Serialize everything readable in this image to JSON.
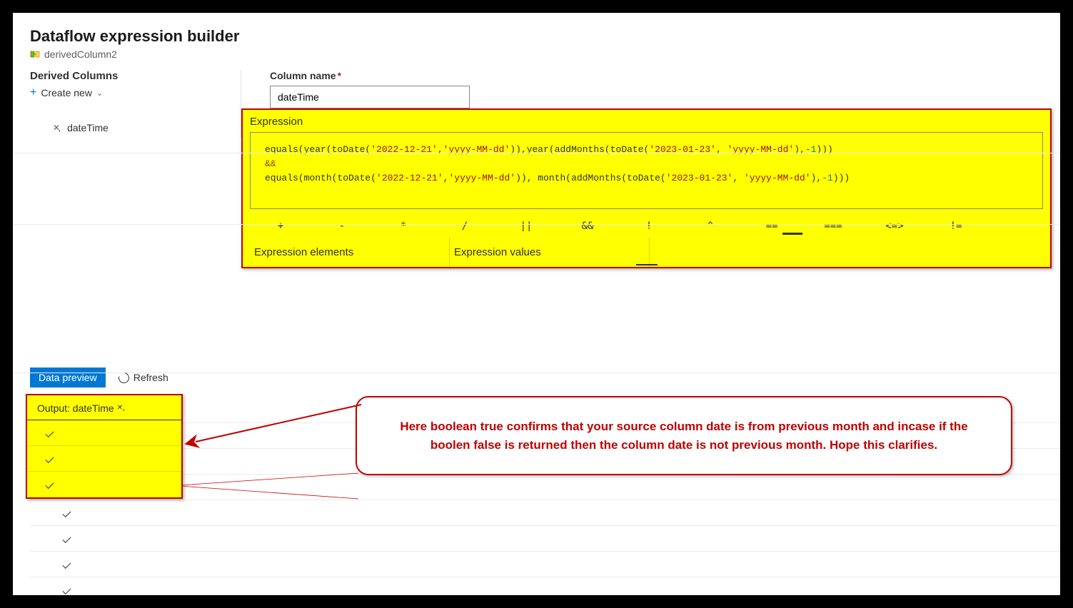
{
  "header": {
    "title": "Dataflow expression builder",
    "breadcrumb": "derivedColumn2"
  },
  "left": {
    "heading": "Derived Columns",
    "create_label": "Create new",
    "item_label": "dateTime"
  },
  "right": {
    "col_name_label": "Column name",
    "col_name_value": "dateTime",
    "expr_label": "Expression",
    "expr_tokens": [
      {
        "t": "fn",
        "v": "equals(year(toDate("
      },
      {
        "t": "str",
        "v": "'2022-12-21'"
      },
      {
        "t": "fn",
        "v": ","
      },
      {
        "t": "str",
        "v": "'yyyy-MM-dd'"
      },
      {
        "t": "fn",
        "v": ")),year(addMonths(toDate("
      },
      {
        "t": "str",
        "v": "'2023-01-23'"
      },
      {
        "t": "fn",
        "v": ", "
      },
      {
        "t": "str",
        "v": "'yyyy-MM-dd'"
      },
      {
        "t": "fn",
        "v": "),"
      },
      {
        "t": "num",
        "v": "-1"
      },
      {
        "t": "fn",
        "v": ")))"
      },
      {
        "t": "nl"
      },
      {
        "t": "op",
        "v": "&&"
      },
      {
        "t": "nl"
      },
      {
        "t": "fn",
        "v": "equals(month(toDate("
      },
      {
        "t": "str",
        "v": "'2022-12-21'"
      },
      {
        "t": "fn",
        "v": ","
      },
      {
        "t": "str",
        "v": "'yyyy-MM-dd'"
      },
      {
        "t": "fn",
        "v": ")), month(addMonths(toDate("
      },
      {
        "t": "str",
        "v": "'2023-01-23'"
      },
      {
        "t": "fn",
        "v": ", "
      },
      {
        "t": "str",
        "v": "'yyyy-MM-dd'"
      },
      {
        "t": "fn",
        "v": "),"
      },
      {
        "t": "num",
        "v": "-1"
      },
      {
        "t": "fn",
        "v": ")))"
      }
    ],
    "operators": [
      "+",
      "-",
      "*",
      "/",
      "||",
      "&&",
      "!",
      "^",
      "==",
      "===",
      "<=>",
      "!="
    ],
    "selected_op_index": 8,
    "tab_elements": "Expression elements",
    "tab_values": "Expression values"
  },
  "preview": {
    "btn": "Data preview",
    "refresh": "Refresh",
    "output_label": "Output: dateTime",
    "highlighted_checks": 3,
    "total_rows": 8
  },
  "callout": {
    "text": "Here boolean true confirms that your source column date is from previous month and incase if the boolen false is returned then the column date is not previous month. Hope this clarifies."
  },
  "colors": {
    "annotation_red": "#c00000",
    "highlight_yellow": "#ffff00",
    "primary_blue": "#0078d4"
  }
}
